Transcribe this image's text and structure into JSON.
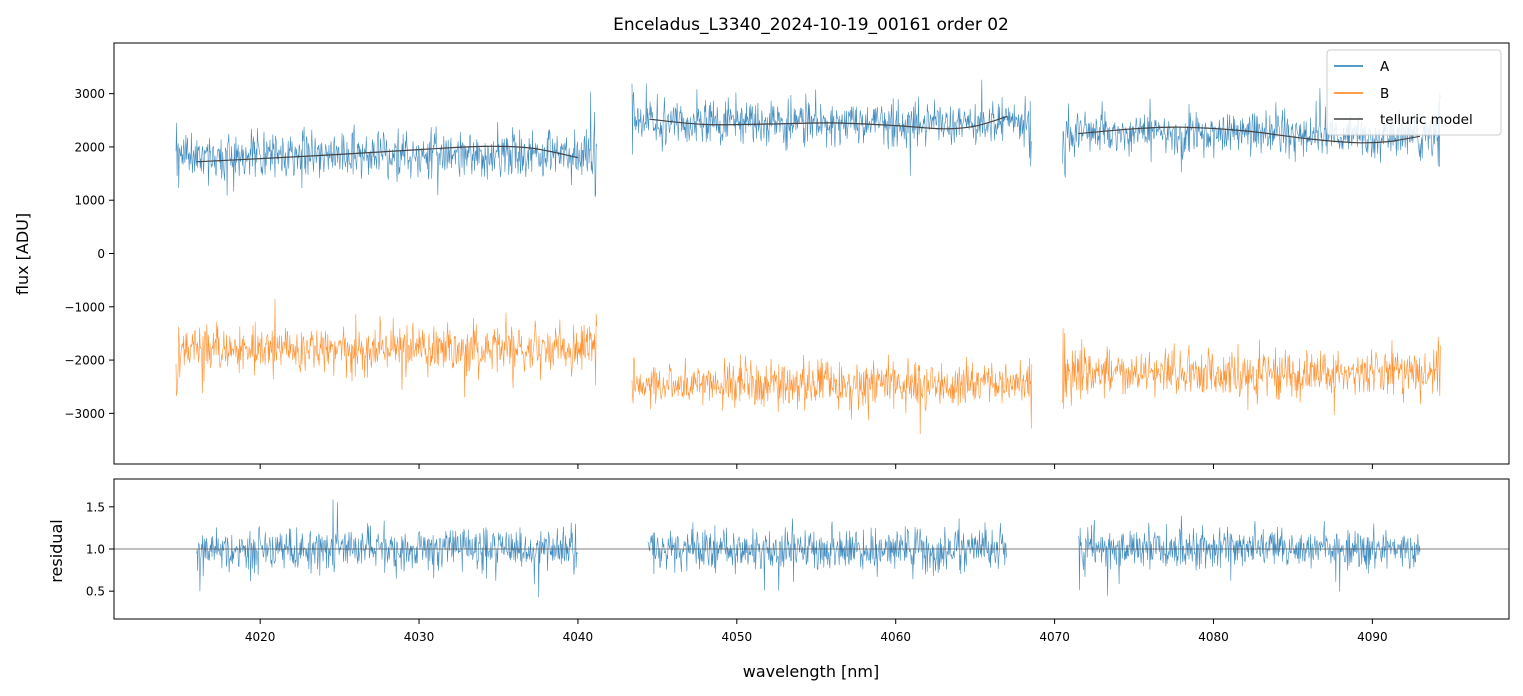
{
  "chart_data": [
    {
      "type": "line",
      "panel": "top",
      "title": "Enceladus_L3340_2024-10-19_00161  order 02",
      "xlabel": "",
      "ylabel": "flux [ADU]",
      "xlim": [
        4010.8,
        4098.6
      ],
      "ylim": [
        -3950,
        3950
      ],
      "yticks": [
        -3000,
        -2000,
        -1000,
        0,
        1000,
        2000,
        3000
      ],
      "ytick_labels": [
        "−3000",
        "−2000",
        "−1000",
        "0",
        "1000",
        "2000",
        "3000"
      ],
      "legend_position": "top-right",
      "segments": [
        [
          4014.7,
          4041.2
        ],
        [
          4043.4,
          4068.6
        ],
        [
          4070.5,
          4094.3
        ]
      ],
      "series": [
        {
          "name": "A",
          "color": "#1f77b4",
          "kind": "noisy-spectrum",
          "mean_level": [
            1850,
            2450,
            2250
          ],
          "noise_amplitude": 550
        },
        {
          "name": "B",
          "color": "#ff7f0e",
          "kind": "noisy-spectrum",
          "mean_level": [
            -1800,
            -2450,
            -2250
          ],
          "noise_amplitude": 550
        },
        {
          "name": "telluric model",
          "color": "#444444",
          "kind": "smooth-curve",
          "curves": [
            {
              "x": [
                4016,
                4020,
                4025,
                4030,
                4034,
                4037,
                4040
              ],
              "y": [
                1720,
                1780,
                1860,
                1950,
                2010,
                1980,
                1800
              ]
            },
            {
              "x": [
                4044.5,
                4048,
                4052,
                4056,
                4060,
                4063,
                4065,
                4067
              ],
              "y": [
                2520,
                2420,
                2430,
                2450,
                2400,
                2340,
                2390,
                2570
              ]
            },
            {
              "x": [
                4071.5,
                4075,
                4078,
                4082,
                4086,
                4089,
                4091,
                4093
              ],
              "y": [
                2250,
                2340,
                2370,
                2300,
                2150,
                2080,
                2100,
                2200
              ]
            }
          ]
        }
      ]
    },
    {
      "type": "line",
      "panel": "bottom",
      "xlabel": "wavelength [nm]",
      "ylabel": "residual",
      "xlim": [
        4010.8,
        4098.6
      ],
      "ylim": [
        0.17,
        1.83
      ],
      "yticks": [
        0.5,
        1.0,
        1.5
      ],
      "ytick_labels": [
        "0.5",
        "1.0",
        "1.5"
      ],
      "xticks": [
        4020,
        4030,
        4040,
        4050,
        4060,
        4070,
        4080,
        4090
      ],
      "xtick_labels": [
        "4020",
        "4030",
        "4040",
        "4050",
        "4060",
        "4070",
        "4080",
        "4090"
      ],
      "reference_line": 1.0,
      "segments": [
        [
          4016,
          4040
        ],
        [
          4044.4,
          4067
        ],
        [
          4071.5,
          4093
        ]
      ],
      "series": [
        {
          "name": "residual",
          "color": "#1f77b4",
          "kind": "noisy-spectrum",
          "mean_level": [
            1.0,
            1.0,
            1.0
          ],
          "noise_amplitude": 0.32
        }
      ]
    }
  ]
}
